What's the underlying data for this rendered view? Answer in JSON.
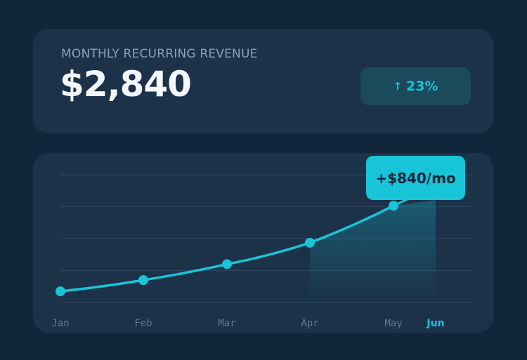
{
  "header": {
    "label": "MONTHLY RECURRING REVENUE",
    "value": "$2,840",
    "change": {
      "icon": "arrow-up-icon",
      "glyph": "↑",
      "text": "23%"
    }
  },
  "colors": {
    "accent": "#18c4d7",
    "card": "#1b3249",
    "background": "#10243a"
  },
  "chart_data": {
    "type": "line",
    "categories": [
      "Jan",
      "Feb",
      "Mar",
      "Apr",
      "May",
      "Jun"
    ],
    "highlighted_category": "Jun",
    "values": [
      0.35,
      0.7,
      1.2,
      1.87,
      3.03,
      null
    ],
    "ylim": [
      0,
      4
    ],
    "grid": true,
    "annotation": "+$840/mo"
  }
}
